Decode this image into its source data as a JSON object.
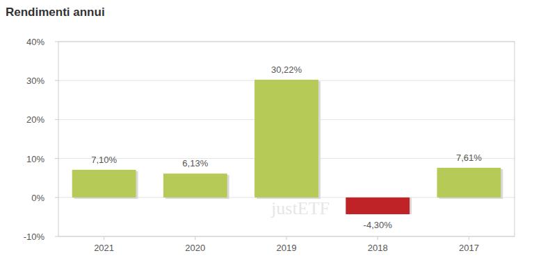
{
  "chart_data": {
    "type": "bar",
    "title": "Rendimenti annui",
    "categories": [
      "2021",
      "2020",
      "2019",
      "2018",
      "2017"
    ],
    "values": [
      7.1,
      6.13,
      30.22,
      -4.3,
      7.61
    ],
    "value_labels": [
      "7,10%",
      "6,13%",
      "30,22%",
      "-4,30%",
      "7,61%"
    ],
    "colors": [
      "#b5ca57",
      "#b5ca57",
      "#b5ca57",
      "#bf2327",
      "#b5ca57"
    ],
    "ylim": [
      -10,
      40
    ],
    "yticks": [
      {
        "value": -10,
        "label": "-10%"
      },
      {
        "value": 0,
        "label": "0%"
      },
      {
        "value": 10,
        "label": "10%"
      },
      {
        "value": 20,
        "label": "20%"
      },
      {
        "value": 30,
        "label": "30%"
      },
      {
        "value": 40,
        "label": "40%"
      }
    ],
    "grid": true,
    "data_labels": true,
    "annotations": [
      "justETF"
    ]
  }
}
